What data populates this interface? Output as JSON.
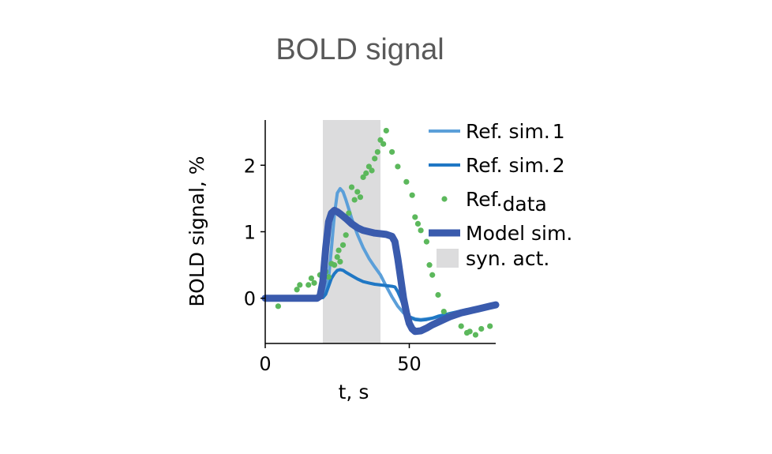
{
  "chart_data": {
    "type": "line",
    "title": "BOLD signal",
    "xlabel": "t, s",
    "ylabel": "BOLD signal, %",
    "xlim": [
      0,
      80
    ],
    "ylim": [
      -0.68,
      2.68
    ],
    "xticks": [
      0,
      50
    ],
    "xtick_labels": [
      "0",
      "50"
    ],
    "yticks": [
      0,
      1,
      2
    ],
    "ytick_labels": [
      "0",
      "1",
      "2"
    ],
    "grid": false,
    "legend_position": "top-right",
    "shaded_region": {
      "x_start": 20,
      "x_end": 40,
      "label": "syn. act.",
      "color": "#dcdcdd"
    },
    "series": [
      {
        "name": "Ref. sim.",
        "legend_index": "1",
        "style": "line",
        "color": "#5b9fd9",
        "x": [
          0,
          18,
          20,
          21,
          22,
          23,
          24,
          25,
          26,
          27,
          28,
          29,
          30,
          32,
          34,
          36,
          38,
          40,
          42,
          44,
          46,
          48,
          50,
          52,
          54,
          56,
          58,
          60,
          62,
          64,
          66,
          68,
          70,
          72,
          74,
          76,
          78,
          80
        ],
        "y": [
          0,
          0,
          0.02,
          0.08,
          0.3,
          0.75,
          1.25,
          1.58,
          1.65,
          1.6,
          1.48,
          1.34,
          1.2,
          0.96,
          0.76,
          0.6,
          0.47,
          0.35,
          0.18,
          0.02,
          -0.12,
          -0.22,
          -0.28,
          -0.31,
          -0.32,
          -0.31,
          -0.3,
          -0.28,
          -0.26,
          -0.24,
          -0.22,
          -0.2,
          -0.18,
          -0.16,
          -0.15,
          -0.14,
          -0.13,
          -0.12
        ]
      },
      {
        "name": "Ref. sim.",
        "legend_index": "2",
        "style": "line",
        "color": "#1f77c4",
        "x": [
          0,
          18,
          20,
          21,
          22,
          23,
          24,
          25,
          26,
          27,
          28,
          30,
          32,
          34,
          36,
          38,
          40,
          42,
          44,
          45,
          46,
          47,
          48,
          49,
          50,
          52,
          54,
          56,
          58,
          60,
          62,
          64,
          66,
          68,
          70,
          72,
          74,
          76,
          78,
          80
        ],
        "y": [
          0,
          0,
          0.01,
          0.06,
          0.18,
          0.3,
          0.37,
          0.42,
          0.43,
          0.42,
          0.39,
          0.34,
          0.29,
          0.25,
          0.23,
          0.21,
          0.2,
          0.19,
          0.18,
          0.17,
          0.1,
          0.0,
          -0.12,
          -0.22,
          -0.28,
          -0.32,
          -0.33,
          -0.32,
          -0.3,
          -0.27,
          -0.25,
          -0.23,
          -0.21,
          -0.19,
          -0.17,
          -0.16,
          -0.15,
          -0.14,
          -0.13,
          -0.12
        ]
      },
      {
        "name": "Ref.",
        "name_sub": "data",
        "style": "dots",
        "color": "#5cb85c",
        "x": [
          4.5,
          11,
          12,
          15,
          16,
          17,
          19,
          20,
          21,
          22,
          23,
          24,
          25,
          25.5,
          26,
          27,
          28,
          29,
          30,
          31,
          32,
          33,
          34,
          35,
          36,
          37,
          38,
          39,
          40,
          41,
          42,
          44,
          46,
          49,
          51,
          52,
          53,
          54,
          56,
          57,
          58,
          60,
          62,
          64,
          68,
          70,
          71,
          73,
          75,
          78
        ],
        "y": [
          -0.12,
          0.13,
          0.2,
          0.2,
          0.3,
          0.23,
          0.35,
          0.37,
          0.4,
          0.32,
          0.52,
          0.5,
          0.62,
          0.72,
          0.55,
          0.8,
          0.95,
          1.28,
          1.67,
          1.48,
          1.6,
          1.52,
          1.82,
          1.88,
          1.98,
          1.92,
          2.1,
          2.2,
          2.38,
          2.32,
          2.52,
          2.2,
          1.98,
          1.75,
          1.55,
          1.22,
          1.12,
          1.02,
          0.85,
          0.5,
          0.35,
          0.05,
          -0.2,
          -0.26,
          -0.42,
          -0.52,
          -0.5,
          -0.55,
          -0.46,
          -0.42
        ]
      },
      {
        "name": "Model sim.",
        "style": "thick-line",
        "color": "#3a5bad",
        "x": [
          0,
          18,
          19,
          20,
          21,
          22,
          23,
          24,
          25,
          26,
          28,
          30,
          32,
          34,
          36,
          38,
          40,
          42,
          44,
          45,
          46,
          47,
          48,
          49,
          50,
          51,
          52,
          54,
          56,
          58,
          60,
          62,
          64,
          66,
          68,
          70,
          72,
          74,
          76,
          78,
          80
        ],
        "y": [
          0,
          0,
          0.03,
          0.25,
          0.75,
          1.15,
          1.28,
          1.32,
          1.3,
          1.27,
          1.2,
          1.12,
          1.06,
          1.02,
          1.0,
          0.98,
          0.97,
          0.96,
          0.93,
          0.85,
          0.6,
          0.3,
          0.0,
          -0.22,
          -0.38,
          -0.46,
          -0.5,
          -0.49,
          -0.45,
          -0.4,
          -0.36,
          -0.32,
          -0.28,
          -0.25,
          -0.22,
          -0.2,
          -0.18,
          -0.16,
          -0.14,
          -0.12,
          -0.1
        ]
      }
    ]
  }
}
